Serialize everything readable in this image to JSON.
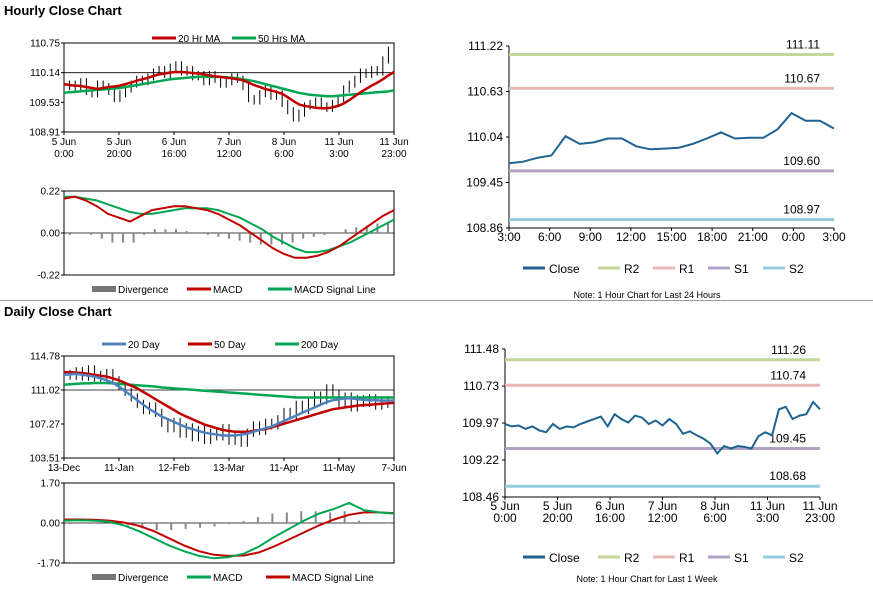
{
  "hourly": {
    "title": "Hourly Close Chart",
    "price": {
      "type": "line",
      "yticks": [
        "110.75",
        "110.14",
        "109.53",
        "108.91"
      ],
      "ylim": [
        108.91,
        110.75
      ],
      "xticks": [
        [
          "5 Jun",
          "0:00"
        ],
        [
          "5 Jun",
          "20:00"
        ],
        [
          "6 Jun",
          "16:00"
        ],
        [
          "7 Jun",
          "12:00"
        ],
        [
          "8 Jun",
          "6:00"
        ],
        [
          "11 Jun",
          "3:00"
        ],
        [
          "11 Jun",
          "23:00"
        ]
      ],
      "legend": [
        {
          "name": "20 Hr MA",
          "color": "#c00000"
        },
        {
          "name": "50 Hrs MA",
          "color": "#00a651"
        }
      ],
      "series": {
        "close": [
          109.85,
          109.9,
          109.8,
          109.95,
          109.75,
          109.7,
          109.9,
          109.85,
          109.75,
          109.6,
          109.7,
          109.8,
          109.9,
          110.0,
          109.95,
          110.05,
          110.15,
          110.2,
          110.1,
          110.25,
          110.3,
          110.15,
          110.2,
          110.05,
          110.1,
          109.95,
          110.1,
          110.0,
          109.9,
          109.95,
          110.05,
          110.0,
          109.85,
          109.6,
          109.55,
          109.7,
          109.8,
          109.65,
          109.7,
          109.5,
          109.35,
          109.2,
          109.3,
          109.45,
          109.5,
          109.55,
          109.45,
          109.4,
          109.5,
          109.6,
          109.8,
          109.9,
          110.0,
          110.15,
          110.1,
          110.2,
          110.15,
          110.4,
          110.6,
          110.45
        ],
        "ma20": [
          109.9,
          109.88,
          109.87,
          109.86,
          109.84,
          109.82,
          109.8,
          109.82,
          109.84,
          109.85,
          109.87,
          109.9,
          109.93,
          109.97,
          110.0,
          110.03,
          110.07,
          110.1,
          110.12,
          110.14,
          110.15,
          110.15,
          110.14,
          110.13,
          110.12,
          110.1,
          110.08,
          110.06,
          110.05,
          110.03,
          110.02,
          110.0,
          109.98,
          109.93,
          109.88,
          109.84,
          109.8,
          109.77,
          109.74,
          109.7,
          109.63,
          109.55,
          109.48,
          109.45,
          109.43,
          109.41,
          109.4,
          109.4,
          109.42,
          109.45,
          109.5,
          109.57,
          109.65,
          109.73,
          109.8,
          109.87,
          109.93,
          110.0,
          110.08,
          110.15
        ],
        "ma50": [
          109.72,
          109.73,
          109.74,
          109.75,
          109.76,
          109.77,
          109.78,
          109.79,
          109.8,
          109.81,
          109.82,
          109.84,
          109.86,
          109.88,
          109.9,
          109.92,
          109.94,
          109.96,
          109.98,
          110.0,
          110.01,
          110.02,
          110.03,
          110.04,
          110.05,
          110.05,
          110.05,
          110.05,
          110.05,
          110.04,
          110.03,
          110.02,
          110.0,
          109.98,
          109.96,
          109.93,
          109.9,
          109.87,
          109.84,
          109.81,
          109.78,
          109.75,
          109.72,
          109.7,
          109.68,
          109.67,
          109.66,
          109.65,
          109.65,
          109.66,
          109.67,
          109.68,
          109.69,
          109.7,
          109.71,
          109.72,
          109.73,
          109.74,
          109.75,
          109.77
        ]
      }
    },
    "macd": {
      "yticks": [
        "0.22",
        "0.00",
        "-0.22"
      ],
      "ylim": [
        -0.22,
        0.22
      ],
      "legend": [
        {
          "name": "Divergence",
          "color": "#777777"
        },
        {
          "name": "MACD",
          "color": "#c00000"
        },
        {
          "name": "MACD Signal Line",
          "color": "#00a651"
        }
      ],
      "series": {
        "macd": [
          0.18,
          0.19,
          0.17,
          0.14,
          0.1,
          0.08,
          0.06,
          0.09,
          0.12,
          0.13,
          0.14,
          0.14,
          0.13,
          0.12,
          0.1,
          0.07,
          0.04,
          0.0,
          -0.04,
          -0.08,
          -0.11,
          -0.13,
          -0.13,
          -0.12,
          -0.1,
          -0.07,
          -0.03,
          0.01,
          0.05,
          0.09,
          0.12
        ],
        "signal": [
          0.19,
          0.19,
          0.18,
          0.17,
          0.15,
          0.13,
          0.11,
          0.1,
          0.1,
          0.11,
          0.12,
          0.13,
          0.13,
          0.13,
          0.12,
          0.1,
          0.08,
          0.05,
          0.02,
          -0.02,
          -0.05,
          -0.08,
          -0.1,
          -0.1,
          -0.09,
          -0.07,
          -0.05,
          -0.02,
          0.01,
          0.04,
          0.07
        ],
        "divergence": [
          -0.01,
          0.0,
          -0.01,
          -0.03,
          -0.05,
          -0.05,
          -0.05,
          -0.01,
          0.02,
          0.02,
          0.02,
          0.01,
          0.0,
          -0.01,
          -0.02,
          -0.03,
          -0.04,
          -0.05,
          -0.06,
          -0.06,
          -0.06,
          -0.05,
          -0.03,
          -0.02,
          -0.01,
          0.0,
          0.02,
          0.03,
          0.04,
          0.05,
          0.05
        ]
      }
    },
    "levels_chart": {
      "type": "line",
      "yticks": [
        "111.22",
        "110.63",
        "110.04",
        "109.45",
        "108.86"
      ],
      "ylim": [
        108.86,
        111.22
      ],
      "xticks": [
        "3:00",
        "6:00",
        "9:00",
        "12:00",
        "15:00",
        "18:00",
        "21:00",
        "0:00",
        "3:00"
      ],
      "close": [
        109.7,
        109.72,
        109.77,
        109.8,
        110.05,
        109.95,
        109.97,
        110.02,
        110.02,
        109.92,
        109.88,
        109.89,
        109.9,
        109.95,
        110.02,
        110.1,
        110.02,
        110.03,
        110.03,
        110.14,
        110.35,
        110.25,
        110.25,
        110.15
      ],
      "levels": [
        {
          "name": "R2",
          "value": 111.11,
          "label": "111.11",
          "color": "#c3d69b"
        },
        {
          "name": "R1",
          "value": 110.67,
          "label": "110.67",
          "color": "#e6b9b8"
        },
        {
          "name": "S1",
          "value": 109.6,
          "label": "109.60",
          "color": "#b3a2c7"
        },
        {
          "name": "S2",
          "value": 108.97,
          "label": "108.97",
          "color": "#93cddd"
        }
      ],
      "close_label": "Close",
      "close_color": "#1f6391",
      "note": "Note: 1 Hour Chart for Last 24 Hours"
    }
  },
  "daily": {
    "title": "Daily Close Chart",
    "price": {
      "type": "line",
      "yticks": [
        "114.78",
        "111.02",
        "107.27",
        "103.51"
      ],
      "ylim": [
        103.51,
        114.78
      ],
      "xticks": [
        "13-Dec",
        "11-Jan",
        "12-Feb",
        "13-Mar",
        "11-Apr",
        "11-May",
        "7-Jun"
      ],
      "legend": [
        {
          "name": "20 Day",
          "color": "#4f81bd"
        },
        {
          "name": "50 Day",
          "color": "#c00000"
        },
        {
          "name": "200 Day",
          "color": "#00a651"
        }
      ],
      "series": {
        "close": [
          112.8,
          112.6,
          113.1,
          112.5,
          113.3,
          112.4,
          112.7,
          112.9,
          112.1,
          111.5,
          110.8,
          110.2,
          109.5,
          108.8,
          109.2,
          108.5,
          107.4,
          106.8,
          107.5,
          106.2,
          106.9,
          105.8,
          106.6,
          105.5,
          106.3,
          105.9,
          106.8,
          105.4,
          106.1,
          105.2,
          106.3,
          107.1,
          106.5,
          107.4,
          107.1,
          107.8,
          108.6,
          108.2,
          109.4,
          108.8,
          109.7,
          110.4,
          109.9,
          111.2,
          110.6,
          109.6,
          110.3,
          109.1,
          110.0,
          109.6,
          110.1,
          109.3,
          109.9,
          109.5,
          110.2
        ],
        "d20": [
          112.7,
          112.75,
          112.8,
          112.7,
          112.6,
          112.5,
          112.3,
          112.1,
          111.8,
          111.4,
          110.9,
          110.4,
          109.9,
          109.4,
          108.9,
          108.5,
          108.1,
          107.8,
          107.5,
          107.2,
          106.9,
          106.7,
          106.5,
          106.3,
          106.2,
          106.1,
          106.0,
          106.0,
          106.0,
          106.1,
          106.2,
          106.4,
          106.6,
          106.8,
          107.0,
          107.3,
          107.6,
          107.9,
          108.2,
          108.5,
          108.8,
          109.1,
          109.4,
          109.7,
          109.9,
          110.0,
          110.1,
          110.1,
          110.0,
          109.95,
          109.9,
          109.9,
          109.85,
          109.85,
          109.85
        ],
        "d50": [
          113.0,
          113.0,
          112.95,
          112.9,
          112.8,
          112.7,
          112.6,
          112.5,
          112.3,
          112.1,
          111.8,
          111.5,
          111.2,
          110.8,
          110.4,
          110.0,
          109.6,
          109.2,
          108.8,
          108.4,
          108.1,
          107.8,
          107.5,
          107.2,
          107.0,
          106.8,
          106.6,
          106.5,
          106.4,
          106.4,
          106.4,
          106.5,
          106.6,
          106.7,
          106.9,
          107.1,
          107.3,
          107.5,
          107.7,
          107.9,
          108.1,
          108.3,
          108.5,
          108.7,
          108.9,
          109.0,
          109.1,
          109.2,
          109.3,
          109.35,
          109.4,
          109.45,
          109.5,
          109.55,
          109.6
        ],
        "d200": [
          111.6,
          111.65,
          111.7,
          111.75,
          111.75,
          111.8,
          111.8,
          111.8,
          111.75,
          111.7,
          111.65,
          111.6,
          111.55,
          111.5,
          111.45,
          111.4,
          111.3,
          111.25,
          111.2,
          111.15,
          111.1,
          111.05,
          111.0,
          110.95,
          110.9,
          110.85,
          110.8,
          110.75,
          110.7,
          110.65,
          110.6,
          110.55,
          110.5,
          110.45,
          110.4,
          110.35,
          110.3,
          110.25,
          110.2,
          110.2,
          110.2,
          110.2,
          110.2,
          110.2,
          110.2,
          110.2,
          110.2,
          110.2,
          110.2,
          110.2,
          110.2,
          110.2,
          110.2,
          110.2,
          110.2
        ]
      }
    },
    "macd": {
      "yticks": [
        "1.70",
        "0.00",
        "-1.70"
      ],
      "ylim": [
        -1.7,
        1.7
      ],
      "legend": [
        {
          "name": "Divergence",
          "color": "#777777"
        },
        {
          "name": "MACD",
          "color": "#00a651"
        },
        {
          "name": "MACD Signal Line",
          "color": "#c00000"
        }
      ],
      "series": {
        "macd": [
          0.1,
          0.12,
          0.1,
          0.05,
          -0.1,
          -0.35,
          -0.65,
          -0.95,
          -1.2,
          -1.4,
          -1.5,
          -1.45,
          -1.3,
          -1.0,
          -0.6,
          -0.25,
          0.1,
          0.4,
          0.6,
          0.85,
          0.55,
          0.45,
          0.4
        ],
        "signal": [
          0.15,
          0.15,
          0.14,
          0.1,
          0.02,
          -0.12,
          -0.35,
          -0.65,
          -0.95,
          -1.2,
          -1.35,
          -1.4,
          -1.38,
          -1.25,
          -1.0,
          -0.7,
          -0.4,
          -0.1,
          0.15,
          0.35,
          0.45,
          0.45,
          0.42
        ],
        "divergence": [
          -0.05,
          -0.03,
          -0.04,
          -0.05,
          -0.12,
          -0.23,
          -0.3,
          -0.3,
          -0.25,
          -0.2,
          -0.15,
          -0.05,
          0.08,
          0.25,
          0.4,
          0.45,
          0.5,
          0.5,
          0.45,
          0.5,
          0.1,
          0.0,
          -0.02
        ]
      }
    },
    "levels_chart": {
      "type": "line",
      "yticks": [
        "111.48",
        "110.73",
        "109.97",
        "109.22",
        "108.46"
      ],
      "ylim": [
        108.46,
        111.48
      ],
      "xticks": [
        [
          "5 Jun",
          "0:00"
        ],
        [
          "5 Jun",
          "20:00"
        ],
        [
          "6 Jun",
          "16:00"
        ],
        [
          "7 Jun",
          "12:00"
        ],
        [
          "8 Jun",
          "6:00"
        ],
        [
          "11 Jun",
          "3:00"
        ],
        [
          "11 Jun",
          "23:00"
        ]
      ],
      "close": [
        109.95,
        109.9,
        109.92,
        109.85,
        109.9,
        109.82,
        109.78,
        109.95,
        109.85,
        109.9,
        109.88,
        109.95,
        110.0,
        110.05,
        110.1,
        109.9,
        110.15,
        110.05,
        109.98,
        110.12,
        110.08,
        109.95,
        110.02,
        109.92,
        110.05,
        109.95,
        109.75,
        109.8,
        109.72,
        109.65,
        109.55,
        109.35,
        109.5,
        109.45,
        109.5,
        109.48,
        109.45,
        109.7,
        109.78,
        109.72,
        110.25,
        110.3,
        110.05,
        110.12,
        110.15,
        110.4,
        110.25
      ],
      "levels": [
        {
          "name": "R2",
          "value": 111.26,
          "label": "111.26",
          "color": "#c3d69b"
        },
        {
          "name": "R1",
          "value": 110.74,
          "label": "110.74",
          "color": "#e6b9b8"
        },
        {
          "name": "S1",
          "value": 109.45,
          "label": "109.45",
          "color": "#b3a2c7"
        },
        {
          "name": "S2",
          "value": 108.68,
          "label": "108.68",
          "color": "#93cddd"
        }
      ],
      "close_label": "Close",
      "close_color": "#1f6391",
      "note": "Note: 1 Hour Chart for Last 1 Week"
    }
  }
}
